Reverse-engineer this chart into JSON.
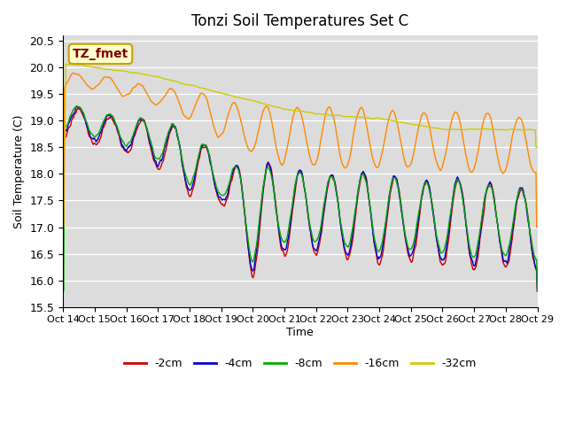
{
  "title": "Tonzi Soil Temperatures Set C",
  "xlabel": "Time",
  "ylabel": "Soil Temperature (C)",
  "ylim": [
    15.5,
    20.6
  ],
  "bg_color": "#dcdcdc",
  "fig_color": "#ffffff",
  "annotation_text": "TZ_fmet",
  "annotation_bg": "#ffffcc",
  "annotation_border": "#c8a000",
  "annotation_text_color": "#800000",
  "x_tick_labels": [
    "Oct 14",
    "Oct 15",
    "Oct 16",
    "Oct 17",
    "Oct 18",
    "Oct 19",
    "Oct 20",
    "Oct 21",
    "Oct 22",
    "Oct 23",
    "Oct 24",
    "Oct 25",
    "Oct 26",
    "Oct 27",
    "Oct 28",
    "Oct 29"
  ],
  "series_colors": [
    "#cc0000",
    "#0000cc",
    "#00aa00",
    "#ff8800",
    "#cccc00"
  ],
  "series_labels": [
    "-2cm",
    "-4cm",
    "-8cm",
    "-16cm",
    "-32cm"
  ],
  "line_width": 1.0
}
